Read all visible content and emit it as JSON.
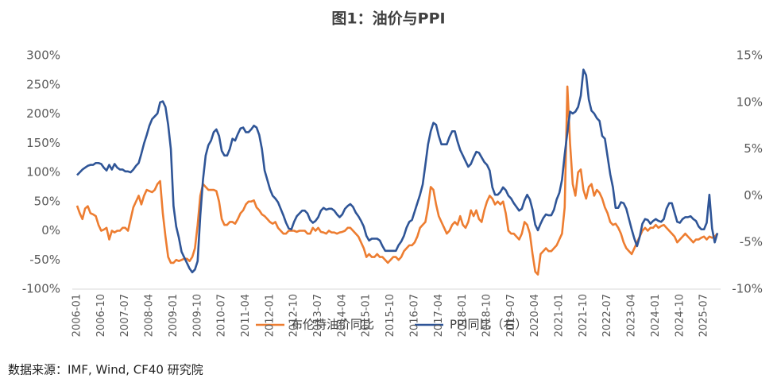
{
  "chart_data": {
    "type": "line",
    "title": "图1：油价与PPI",
    "source": "数据来源：IMF, Wind, CF40 研究院",
    "categories": [
      "2006-01",
      null,
      null,
      null,
      null,
      null,
      null,
      null,
      null,
      "2006-10",
      null,
      null,
      null,
      null,
      null,
      null,
      null,
      null,
      "2007-07",
      null,
      null,
      null,
      null,
      null,
      null,
      null,
      null,
      "2008-04",
      null,
      null,
      null,
      null,
      null,
      null,
      null,
      null,
      "2009-01",
      null,
      null,
      null,
      null,
      null,
      null,
      null,
      null,
      "2009-10",
      null,
      null,
      null,
      null,
      null,
      null,
      null,
      null,
      "2010-07",
      null,
      null,
      null,
      null,
      null,
      null,
      null,
      null,
      "2011-04",
      null,
      null,
      null,
      null,
      null,
      null,
      null,
      null,
      "2012-01",
      null,
      null,
      null,
      null,
      null,
      null,
      null,
      null,
      "2012-10",
      null,
      null,
      null,
      null,
      null,
      null,
      null,
      null,
      "2013-07",
      null,
      null,
      null,
      null,
      null,
      null,
      null,
      null,
      "2014-04",
      null,
      null,
      null,
      null,
      null,
      null,
      null,
      null,
      "2015-01",
      null,
      null,
      null,
      null,
      null,
      null,
      null,
      null,
      "2015-10",
      null,
      null,
      null,
      null,
      null,
      null,
      null,
      null,
      "2016-07",
      null,
      null,
      null,
      null,
      null,
      null,
      null,
      null,
      "2017-04",
      null,
      null,
      null,
      null,
      null,
      null,
      null,
      null,
      "2018-01",
      null,
      null,
      null,
      null,
      null,
      null,
      null,
      null,
      "2018-10",
      null,
      null,
      null,
      null,
      null,
      null,
      null,
      null,
      "2019-07",
      null,
      null,
      null,
      null,
      null,
      null,
      null,
      null,
      "2020-04",
      null,
      null,
      null,
      null,
      null,
      null,
      null,
      null,
      "2021-01",
      null,
      null,
      null,
      null,
      null,
      null,
      null,
      null,
      "2021-10",
      null,
      null,
      null,
      null,
      null,
      null,
      null,
      null,
      "2022-07",
      null,
      null,
      null,
      null,
      null,
      null,
      null,
      null,
      "2023-04",
      null,
      null,
      null,
      null,
      null,
      null,
      null,
      null,
      "2024-01",
      null,
      null,
      null,
      null,
      null,
      null,
      null,
      null,
      "2024-10",
      null,
      null,
      null,
      null,
      null,
      null,
      null,
      null,
      "2025-07",
      null,
      null,
      null,
      null,
      null
    ],
    "series": [
      {
        "name": "布伦特油价同比",
        "color": "#ED7D31",
        "values": [
          43,
          30,
          20,
          38,
          42,
          30,
          28,
          25,
          10,
          0,
          2,
          5,
          -15,
          0,
          -3,
          0,
          0,
          5,
          5,
          0,
          20,
          40,
          50,
          60,
          45,
          60,
          70,
          68,
          66,
          70,
          80,
          85,
          30,
          -10,
          -45,
          -55,
          -55,
          -50,
          -52,
          -50,
          -48,
          -48,
          -52,
          -45,
          -30,
          10,
          60,
          80,
          75,
          70,
          70,
          70,
          68,
          50,
          20,
          10,
          10,
          15,
          15,
          12,
          20,
          30,
          35,
          45,
          50,
          50,
          52,
          40,
          35,
          28,
          25,
          20,
          15,
          12,
          15,
          5,
          0,
          -5,
          -5,
          0,
          0,
          0,
          -2,
          0,
          0,
          0,
          -5,
          -5,
          5,
          0,
          5,
          -2,
          -3,
          -5,
          0,
          -3,
          -3,
          -5,
          -3,
          -2,
          0,
          5,
          5,
          0,
          -5,
          -10,
          -20,
          -30,
          -45,
          -40,
          -45,
          -45,
          -40,
          -45,
          -45,
          -50,
          -55,
          -50,
          -45,
          -45,
          -50,
          -45,
          -35,
          -30,
          -25,
          -25,
          -20,
          -10,
          5,
          10,
          15,
          40,
          75,
          70,
          45,
          25,
          15,
          5,
          -5,
          0,
          10,
          15,
          10,
          25,
          10,
          5,
          15,
          35,
          25,
          35,
          20,
          15,
          35,
          50,
          60,
          55,
          45,
          50,
          45,
          50,
          30,
          0,
          -5,
          -5,
          -10,
          -15,
          -5,
          15,
          10,
          -5,
          -40,
          -70,
          -75,
          -40,
          -35,
          -30,
          -35,
          -35,
          -30,
          -25,
          -15,
          -5,
          40,
          247,
          150,
          80,
          60,
          100,
          105,
          70,
          55,
          75,
          80,
          60,
          70,
          65,
          55,
          40,
          30,
          15,
          10,
          12,
          5,
          -5,
          -20,
          -30,
          -35,
          -40,
          -30,
          -20,
          -10,
          0,
          5,
          0,
          5,
          5,
          10,
          5,
          8,
          10,
          5,
          0,
          -5,
          -10,
          -20,
          -15,
          -10,
          -5,
          -10,
          -15,
          -20,
          -15,
          -15,
          -12,
          -10,
          -15,
          -10,
          -12,
          -10,
          -5
        ]
      },
      {
        "name": "PPI同比（右）",
        "color": "#2F5597",
        "axis": "y2",
        "values": [
          2.2,
          2.5,
          2.8,
          3.0,
          3.2,
          3.3,
          3.3,
          3.5,
          3.5,
          3.4,
          3.0,
          2.7,
          3.3,
          2.8,
          3.4,
          3.0,
          2.8,
          2.8,
          2.6,
          2.6,
          2.5,
          2.8,
          3.2,
          3.5,
          4.5,
          5.6,
          6.5,
          7.5,
          8.2,
          8.5,
          8.8,
          10.0,
          10.1,
          9.5,
          7.6,
          5.0,
          -1.1,
          -3.3,
          -4.5,
          -6.0,
          -6.6,
          -7.2,
          -7.8,
          -8.2,
          -7.9,
          -7.0,
          -2.1,
          1.7,
          4.3,
          5.4,
          5.9,
          6.8,
          7.1,
          6.4,
          4.8,
          4.3,
          4.3,
          5.0,
          6.1,
          5.9,
          6.6,
          7.2,
          7.3,
          6.8,
          6.8,
          7.1,
          7.5,
          7.3,
          6.5,
          5.0,
          2.7,
          1.7,
          0.7,
          0.0,
          -0.3,
          -0.7,
          -1.4,
          -2.1,
          -2.9,
          -3.5,
          -3.6,
          -2.8,
          -2.2,
          -1.9,
          -1.6,
          -1.6,
          -1.9,
          -2.6,
          -2.9,
          -2.7,
          -2.3,
          -1.6,
          -1.3,
          -1.5,
          -1.4,
          -1.4,
          -1.6,
          -2.0,
          -2.3,
          -2.0,
          -1.4,
          -1.1,
          -0.9,
          -1.2,
          -1.8,
          -2.2,
          -2.7,
          -3.3,
          -4.3,
          -4.8,
          -4.6,
          -4.6,
          -4.6,
          -4.8,
          -5.4,
          -5.9,
          -5.9,
          -5.9,
          -5.9,
          -5.9,
          -5.3,
          -4.9,
          -4.3,
          -3.4,
          -2.8,
          -2.6,
          -1.7,
          -0.8,
          0.1,
          1.2,
          3.3,
          5.5,
          6.9,
          7.8,
          7.6,
          6.4,
          5.5,
          5.5,
          5.5,
          6.3,
          6.9,
          6.9,
          5.8,
          4.9,
          4.3,
          3.7,
          3.1,
          3.4,
          4.1,
          4.7,
          4.6,
          4.1,
          3.6,
          3.3,
          2.7,
          0.9,
          0.1,
          0.1,
          0.4,
          0.9,
          0.6,
          0.0,
          -0.3,
          -0.8,
          -1.2,
          -1.6,
          -1.4,
          -0.5,
          0.1,
          -0.4,
          -1.5,
          -3.1,
          -3.7,
          -3.0,
          -2.4,
          -2.0,
          -2.1,
          -2.1,
          -1.5,
          -0.4,
          0.3,
          1.7,
          4.4,
          6.8,
          9.0,
          8.8,
          9.0,
          9.5,
          10.7,
          13.5,
          12.9,
          10.3,
          9.1,
          8.8,
          8.3,
          8.0,
          6.4,
          6.1,
          4.2,
          2.3,
          0.9,
          -1.3,
          -1.3,
          -0.7,
          -0.8,
          -1.4,
          -2.5,
          -3.6,
          -4.6,
          -5.4,
          -4.4,
          -3.0,
          -2.5,
          -2.6,
          -3.0,
          -2.7,
          -2.5,
          -2.7,
          -2.8,
          -2.5,
          -1.4,
          -0.8,
          -0.8,
          -1.8,
          -2.8,
          -2.9,
          -2.5,
          -2.3,
          -2.3,
          -2.2,
          -2.5,
          -2.7,
          -3.3,
          -3.6,
          -3.6,
          -2.9,
          0.1,
          -3.5,
          -5.0,
          -4.0
        ]
      }
    ],
    "ylim": [
      -100,
      300
    ],
    "yticks": [
      {
        "value": -100,
        "label": "-100%"
      },
      {
        "value": -50,
        "label": "-50%"
      },
      {
        "value": 0,
        "label": "0%"
      },
      {
        "value": 50,
        "label": "50%"
      },
      {
        "value": 100,
        "label": "100%"
      },
      {
        "value": 150,
        "label": "150%"
      },
      {
        "value": 200,
        "label": "200%"
      },
      {
        "value": 250,
        "label": "250%"
      },
      {
        "value": 300,
        "label": "300%"
      }
    ],
    "y2lim": [
      -10,
      15
    ],
    "y2ticks": [
      {
        "value": -10,
        "label": "-10%"
      },
      {
        "value": -5,
        "label": "-5%"
      },
      {
        "value": 0,
        "label": "0%"
      },
      {
        "value": 5,
        "label": "5%"
      },
      {
        "value": 10,
        "label": "10%"
      },
      {
        "value": 15,
        "label": "15%"
      }
    ],
    "grid": false
  }
}
